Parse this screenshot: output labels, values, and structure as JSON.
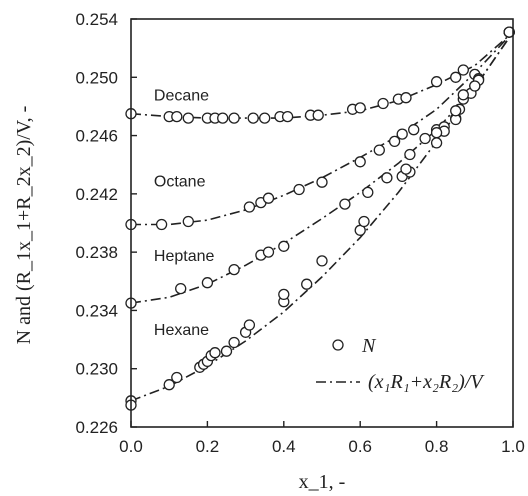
{
  "chart_data": {
    "type": "scatter",
    "title": "",
    "xlabel": "x_1, -",
    "ylabel": "N and (R_1x_1+R_2x_2)/V, -",
    "xlim": [
      0.0,
      1.0
    ],
    "ylim": [
      0.226,
      0.254
    ],
    "xticks": [
      "0.0",
      "0.2",
      "0.4",
      "0.6",
      "0.8",
      "1.0"
    ],
    "yticks": [
      "0.226",
      "0.230",
      "0.234",
      "0.238",
      "0.242",
      "0.246",
      "0.250",
      "0.254"
    ],
    "legend": {
      "placement": "bottom-right",
      "markers_label": "N",
      "line_label": "(x₁R₁+x₂R₂)/V"
    },
    "series": [
      {
        "name": "Decane",
        "label_x": 0.06,
        "label_y": 0.2484,
        "points": [
          [
            0.0,
            0.2475
          ],
          [
            0.1,
            0.2473
          ],
          [
            0.12,
            0.2473
          ],
          [
            0.15,
            0.2472
          ],
          [
            0.2,
            0.2472
          ],
          [
            0.22,
            0.2472
          ],
          [
            0.24,
            0.2472
          ],
          [
            0.27,
            0.2472
          ],
          [
            0.32,
            0.2472
          ],
          [
            0.35,
            0.2472
          ],
          [
            0.39,
            0.2473
          ],
          [
            0.41,
            0.2473
          ],
          [
            0.47,
            0.2474
          ],
          [
            0.49,
            0.2474
          ],
          [
            0.58,
            0.2478
          ],
          [
            0.6,
            0.2479
          ],
          [
            0.66,
            0.2482
          ],
          [
            0.7,
            0.2485
          ],
          [
            0.72,
            0.2486
          ],
          [
            0.8,
            0.2497
          ],
          [
            0.85,
            0.25
          ],
          [
            0.87,
            0.2505
          ],
          [
            0.9,
            0.2502
          ],
          [
            0.91,
            0.2499
          ],
          [
            0.99,
            0.2531
          ]
        ],
        "fit": [
          [
            0.0,
            0.2475
          ],
          [
            0.1,
            0.2473
          ],
          [
            0.2,
            0.2472
          ],
          [
            0.3,
            0.2472
          ],
          [
            0.4,
            0.2472
          ],
          [
            0.5,
            0.2474
          ],
          [
            0.6,
            0.2477
          ],
          [
            0.7,
            0.2484
          ],
          [
            0.8,
            0.2495
          ],
          [
            0.9,
            0.2508
          ],
          [
            1.0,
            0.2531
          ]
        ]
      },
      {
        "name": "Octane",
        "label_x": 0.06,
        "label_y": 0.2425,
        "points": [
          [
            0.0,
            0.2399
          ],
          [
            0.08,
            0.2399
          ],
          [
            0.15,
            0.2401
          ],
          [
            0.31,
            0.2411
          ],
          [
            0.34,
            0.2414
          ],
          [
            0.36,
            0.2417
          ],
          [
            0.44,
            0.2423
          ],
          [
            0.5,
            0.2428
          ],
          [
            0.6,
            0.2442
          ],
          [
            0.65,
            0.245
          ],
          [
            0.69,
            0.2456
          ],
          [
            0.71,
            0.2461
          ],
          [
            0.74,
            0.2464
          ],
          [
            0.77,
            0.2458
          ],
          [
            0.8,
            0.2464
          ],
          [
            0.82,
            0.2466
          ],
          [
            0.85,
            0.2472
          ],
          [
            0.86,
            0.2478
          ],
          [
            0.87,
            0.2485
          ],
          [
            0.9,
            0.2494
          ],
          [
            0.91,
            0.2498
          ],
          [
            0.99,
            0.2531
          ]
        ],
        "fit": [
          [
            0.0,
            0.2399
          ],
          [
            0.1,
            0.2399
          ],
          [
            0.2,
            0.2402
          ],
          [
            0.3,
            0.2409
          ],
          [
            0.4,
            0.2419
          ],
          [
            0.5,
            0.2431
          ],
          [
            0.6,
            0.2445
          ],
          [
            0.7,
            0.246
          ],
          [
            0.8,
            0.2478
          ],
          [
            0.9,
            0.2503
          ],
          [
            1.0,
            0.2531
          ]
        ]
      },
      {
        "name": "Heptane",
        "label_x": 0.06,
        "label_y": 0.2374,
        "points": [
          [
            0.0,
            0.2345
          ],
          [
            0.13,
            0.2355
          ],
          [
            0.2,
            0.2359
          ],
          [
            0.27,
            0.2368
          ],
          [
            0.34,
            0.2378
          ],
          [
            0.36,
            0.238
          ],
          [
            0.4,
            0.2384
          ],
          [
            0.56,
            0.2413
          ],
          [
            0.62,
            0.2421
          ],
          [
            0.67,
            0.2431
          ],
          [
            0.71,
            0.2432
          ],
          [
            0.73,
            0.2435
          ],
          [
            0.8,
            0.2455
          ],
          [
            0.82,
            0.2463
          ],
          [
            0.85,
            0.2471
          ],
          [
            0.89,
            0.2489
          ],
          [
            0.9,
            0.2494
          ],
          [
            0.99,
            0.2531
          ]
        ],
        "fit": [
          [
            0.0,
            0.2345
          ],
          [
            0.1,
            0.2349
          ],
          [
            0.2,
            0.2358
          ],
          [
            0.3,
            0.2371
          ],
          [
            0.4,
            0.2386
          ],
          [
            0.5,
            0.2403
          ],
          [
            0.6,
            0.2421
          ],
          [
            0.7,
            0.2441
          ],
          [
            0.8,
            0.2464
          ],
          [
            0.9,
            0.2493
          ],
          [
            1.0,
            0.2531
          ]
        ]
      },
      {
        "name": "Hexane",
        "label_x": 0.06,
        "label_y": 0.2323,
        "points": [
          [
            0.0,
            0.2278
          ],
          [
            0.0,
            0.2275
          ],
          [
            0.1,
            0.2289
          ],
          [
            0.12,
            0.2294
          ],
          [
            0.18,
            0.2301
          ],
          [
            0.19,
            0.2303
          ],
          [
            0.2,
            0.2305
          ],
          [
            0.21,
            0.2309
          ],
          [
            0.22,
            0.2311
          ],
          [
            0.25,
            0.2312
          ],
          [
            0.27,
            0.2318
          ],
          [
            0.3,
            0.2325
          ],
          [
            0.31,
            0.233
          ],
          [
            0.4,
            0.2346
          ],
          [
            0.4,
            0.2351
          ],
          [
            0.46,
            0.2358
          ],
          [
            0.5,
            0.2374
          ],
          [
            0.6,
            0.2395
          ],
          [
            0.61,
            0.2401
          ],
          [
            0.72,
            0.2437
          ],
          [
            0.73,
            0.2447
          ],
          [
            0.8,
            0.2462
          ],
          [
            0.85,
            0.2477
          ],
          [
            0.87,
            0.2488
          ],
          [
            0.99,
            0.2531
          ]
        ],
        "fit": [
          [
            0.0,
            0.2278
          ],
          [
            0.1,
            0.2288
          ],
          [
            0.2,
            0.2302
          ],
          [
            0.3,
            0.2319
          ],
          [
            0.4,
            0.2339
          ],
          [
            0.5,
            0.2363
          ],
          [
            0.6,
            0.239
          ],
          [
            0.7,
            0.2421
          ],
          [
            0.8,
            0.2456
          ],
          [
            0.9,
            0.2493
          ],
          [
            1.0,
            0.2531
          ]
        ]
      }
    ]
  }
}
